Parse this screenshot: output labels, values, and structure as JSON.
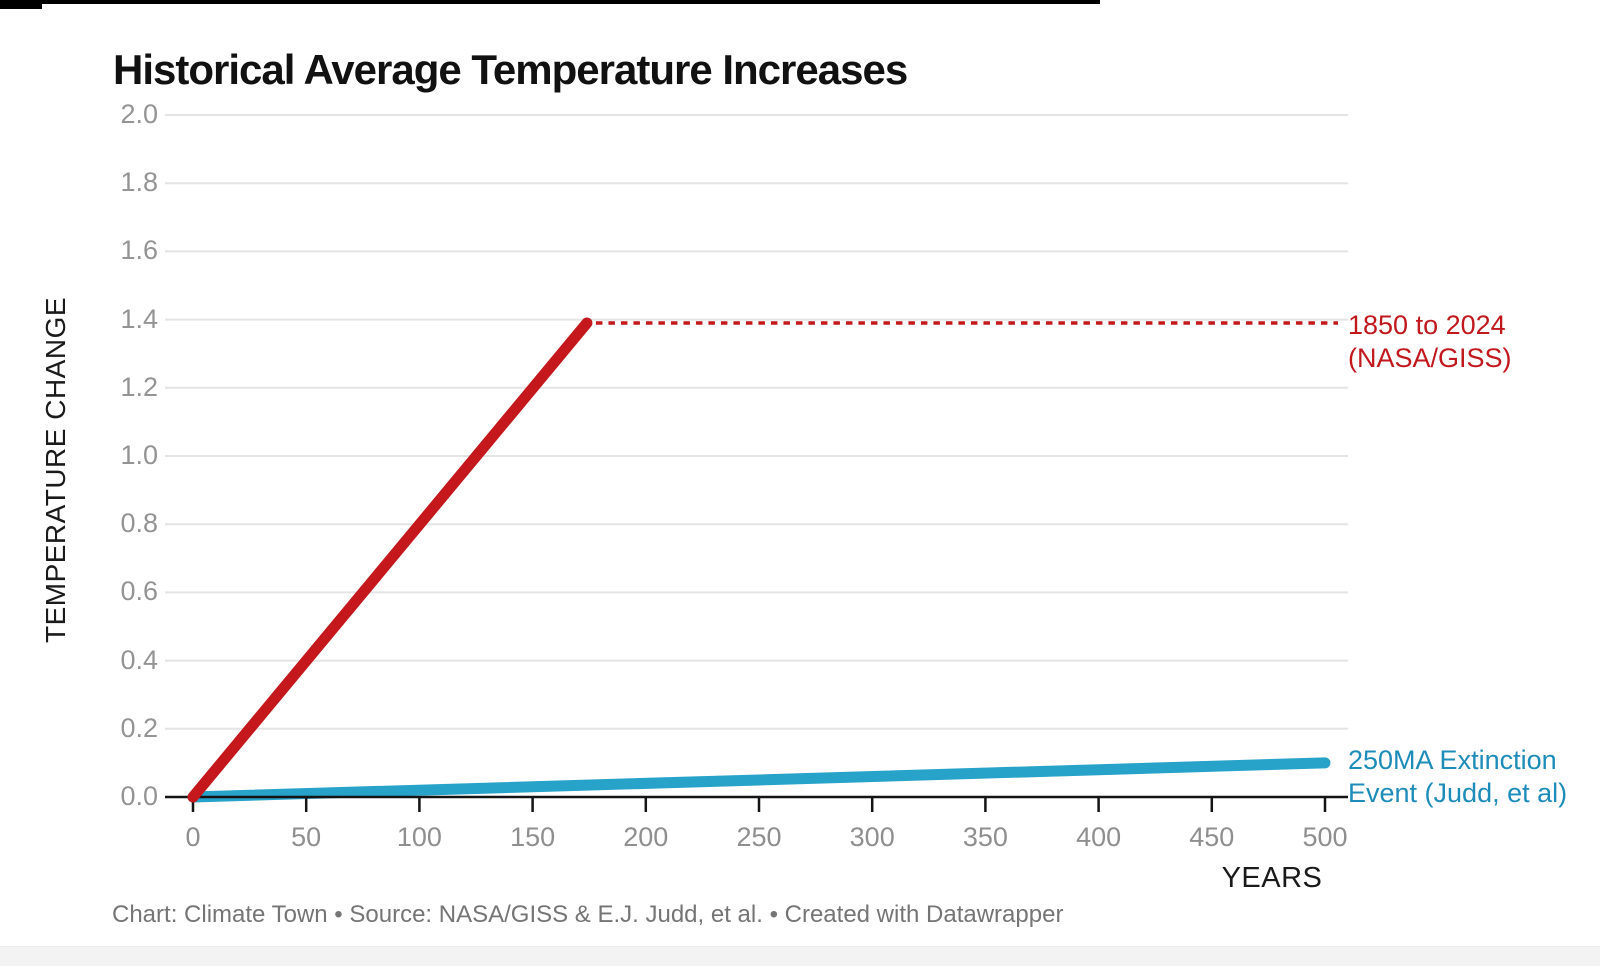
{
  "page": {
    "title": "Historical Average Temperature Increases",
    "footer": "Chart: Climate Town • Source: NASA/GISS & E.J. Judd, et al. • Created with Datawrapper"
  },
  "axes": {
    "y_title": "TEMPERATURE CHANGE",
    "x_title": "YEARS"
  },
  "annotations": {
    "red": {
      "line1": "1850 to 2024",
      "line2": "(NASA/GISS)",
      "color": "#c0181d"
    },
    "blue": {
      "line1": "250MA Extinction",
      "line2": "Event (Judd, et al)",
      "color": "#1d8cb8"
    }
  },
  "colors": {
    "red_line": "#c4181c",
    "blue_line": "#27a2c9",
    "gridline": "#e4e4e4",
    "axis_line": "#141414",
    "tick_label": "#949494"
  },
  "chart_data": {
    "type": "line",
    "title": "Historical Average Temperature Increases",
    "xlabel": "YEARS",
    "ylabel": "TEMPERATURE CHANGE",
    "xlim": [
      0,
      500
    ],
    "ylim": [
      0,
      2.0
    ],
    "x_ticks": [
      0,
      50,
      100,
      150,
      200,
      250,
      300,
      350,
      400,
      450,
      500
    ],
    "y_ticks": [
      0.0,
      0.2,
      0.4,
      0.6,
      0.8,
      1.0,
      1.2,
      1.4,
      1.6,
      1.8,
      2.0
    ],
    "grid": true,
    "legend_position": "right-edge text annotations",
    "series": [
      {
        "name": "1850 to 2024 (NASA/GISS)",
        "color": "#c4181c",
        "points": [
          [
            0,
            0
          ],
          [
            174,
            1.39
          ]
        ],
        "dotted_leader": true
      },
      {
        "name": "250MA Extinction Event (Judd, et al)",
        "color": "#27a2c9",
        "points": [
          [
            0,
            0
          ],
          [
            500,
            0.1
          ]
        ],
        "dotted_leader": false
      }
    ]
  }
}
